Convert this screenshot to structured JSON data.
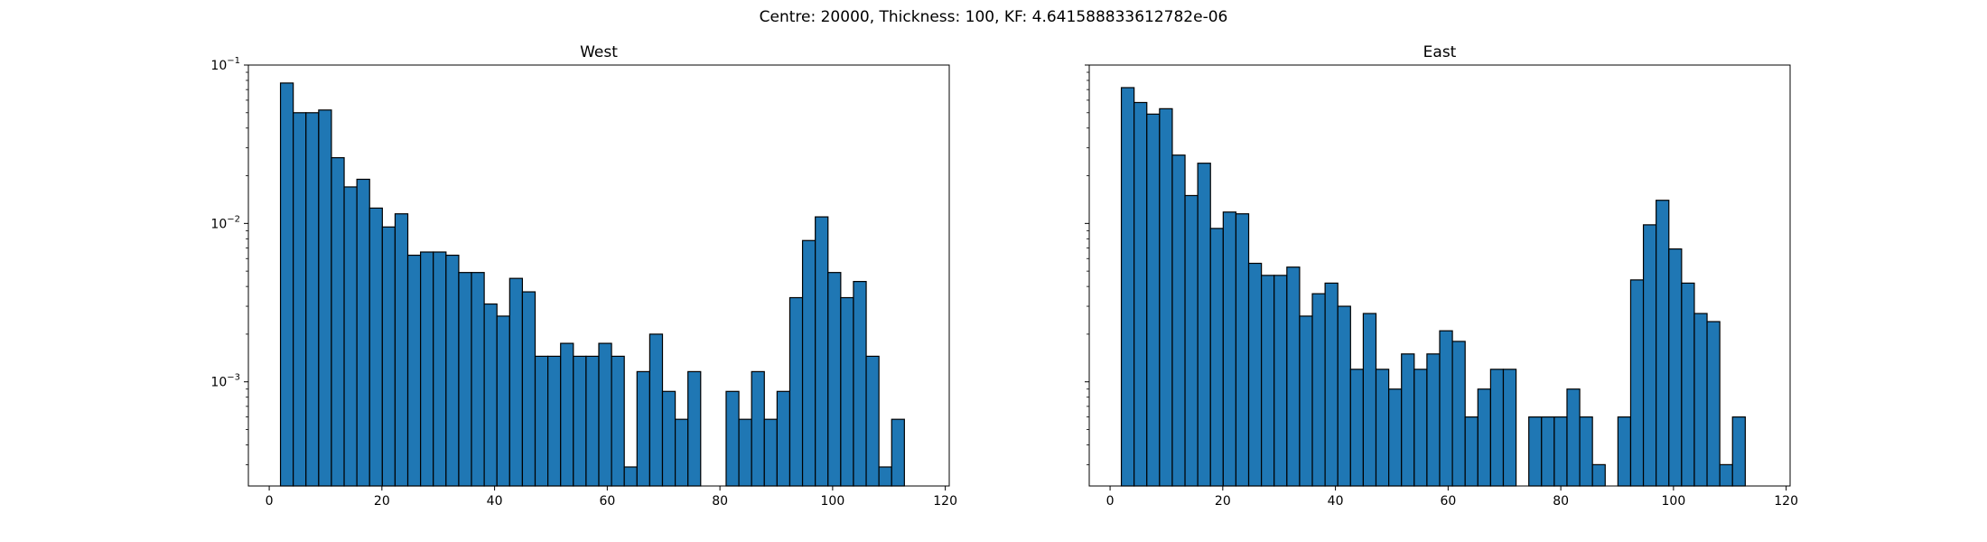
{
  "suptitle": "Centre: 20000, Thickness: 100, KF: 4.641588833612782e-06",
  "chart_data": [
    {
      "type": "bar",
      "title": "West",
      "xlabel": "",
      "ylabel": "",
      "xlim": [
        -3.7,
        120.7
      ],
      "ylim": [
        0.00022,
        0.1
      ],
      "yscale": "log",
      "x_ticks": [
        0,
        20,
        40,
        60,
        80,
        100,
        120
      ],
      "y_ticks": [
        {
          "value": 0.001,
          "base": "10",
          "exp": "−3"
        },
        {
          "value": 0.01,
          "base": "10",
          "exp": "−2"
        },
        {
          "value": 0.1,
          "base": "10",
          "exp": "−1"
        }
      ],
      "bin_start": 2.0,
      "bin_width": 2.26,
      "color": "#1f77b4",
      "edge_color": "#000000",
      "values": [
        0.077,
        0.05,
        0.05,
        0.052,
        0.026,
        0.017,
        0.019,
        0.0125,
        0.0095,
        0.0115,
        0.0063,
        0.0066,
        0.0066,
        0.0063,
        0.0049,
        0.0049,
        0.0031,
        0.0026,
        0.0045,
        0.0037,
        0.00145,
        0.00145,
        0.00175,
        0.00145,
        0.00145,
        0.00175,
        0.00145,
        0.00029,
        0.00116,
        0.002,
        0.00087,
        0.00058,
        0.00116,
        0,
        0,
        0.00087,
        0.00058,
        0.00116,
        0.00058,
        0.00087,
        0.0034,
        0.0078,
        0.011,
        0.0049,
        0.0034,
        0.0043,
        0.00145,
        0.00029,
        0.00058
      ]
    },
    {
      "type": "bar",
      "title": "East",
      "xlabel": "",
      "ylabel": "",
      "xlim": [
        -3.7,
        120.7
      ],
      "ylim": [
        0.00022,
        0.1
      ],
      "yscale": "log",
      "x_ticks": [
        0,
        20,
        40,
        60,
        80,
        100,
        120
      ],
      "y_ticks": [],
      "bin_start": 2.0,
      "bin_width": 2.26,
      "color": "#1f77b4",
      "edge_color": "#000000",
      "values": [
        0.072,
        0.058,
        0.049,
        0.053,
        0.027,
        0.015,
        0.024,
        0.0093,
        0.0118,
        0.0115,
        0.0056,
        0.0047,
        0.0047,
        0.0053,
        0.0026,
        0.0036,
        0.0042,
        0.003,
        0.0012,
        0.0027,
        0.0012,
        0.0009,
        0.0015,
        0.0012,
        0.0015,
        0.0021,
        0.0018,
        0.0006,
        0.0009,
        0.0012,
        0.0012,
        0,
        0.0006,
        0.0006,
        0.0006,
        0.0009,
        0.0006,
        0.0003,
        0,
        0.0006,
        0.0044,
        0.0098,
        0.014,
        0.0069,
        0.0042,
        0.0027,
        0.0024,
        0.0003,
        0.0006
      ]
    }
  ]
}
